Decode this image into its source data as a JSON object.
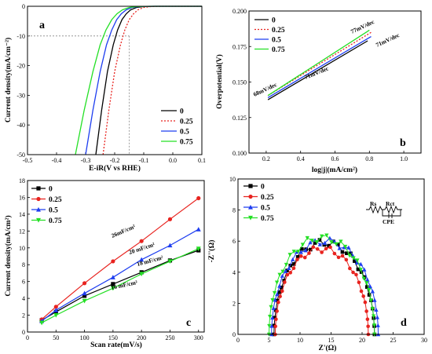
{
  "colors": {
    "s0": "#000000",
    "s025": "#e8231f",
    "s05": "#1d3df0",
    "s075": "#24e025"
  },
  "chart_data": [
    {
      "panel": "a",
      "type": "line",
      "xlabel": "E-iR(V vs RHE)",
      "ylabel": "Current density(mA/cm⁻²)",
      "xlim": [
        -0.5,
        0.1
      ],
      "ylim": [
        -50,
        0
      ],
      "xticks": [
        "-0.5",
        "-0.4",
        "-0.3",
        "-0.2",
        "-0.1",
        "0.0",
        "0.1"
      ],
      "yticks": [
        "-50",
        "-40",
        "-30",
        "-20",
        "-10",
        "0"
      ],
      "reference": {
        "y": -10,
        "x": -0.15,
        "style": "dashed"
      },
      "legend": "bottom-right",
      "series": [
        {
          "name": "0",
          "style": "solid",
          "x": [
            -0.265,
            -0.245,
            -0.225,
            -0.205,
            -0.19,
            -0.175,
            -0.16,
            -0.145,
            -0.125,
            -0.1,
            -0.06,
            0.0,
            0.1
          ],
          "y": [
            -50,
            -35,
            -22,
            -13,
            -8,
            -4.5,
            -2.5,
            -1.2,
            -0.4,
            -0.1,
            0,
            0,
            0
          ]
        },
        {
          "name": "0.25",
          "style": "dotted",
          "x": [
            -0.24,
            -0.22,
            -0.2,
            -0.18,
            -0.165,
            -0.15,
            -0.135,
            -0.12,
            -0.1,
            -0.075,
            -0.04,
            0.0,
            0.1
          ],
          "y": [
            -50,
            -35,
            -22,
            -13,
            -8,
            -4.5,
            -2.5,
            -1.2,
            -0.4,
            -0.1,
            0,
            0,
            0
          ]
        },
        {
          "name": "0.5",
          "style": "solid",
          "x": [
            -0.3,
            -0.275,
            -0.25,
            -0.228,
            -0.21,
            -0.193,
            -0.177,
            -0.16,
            -0.14,
            -0.115,
            -0.07,
            0.0,
            0.1
          ],
          "y": [
            -50,
            -35,
            -22,
            -13,
            -8,
            -4.5,
            -2.5,
            -1.2,
            -0.4,
            -0.1,
            0,
            0,
            0
          ]
        },
        {
          "name": "0.75",
          "style": "solid",
          "x": [
            -0.335,
            -0.305,
            -0.275,
            -0.25,
            -0.23,
            -0.21,
            -0.192,
            -0.173,
            -0.15,
            -0.125,
            -0.08,
            0.0,
            0.1
          ],
          "y": [
            -50,
            -35,
            -22,
            -13,
            -8,
            -4.5,
            -2.5,
            -1.2,
            -0.4,
            -0.1,
            0,
            0,
            0
          ]
        }
      ]
    },
    {
      "panel": "b",
      "type": "line",
      "xlabel": "log|j|(mA/cm²)",
      "ylabel": "Overpotential(V)",
      "xlim": [
        0.1,
        1.1
      ],
      "ylim": [
        0.1,
        0.2
      ],
      "xticks": [
        "0.2",
        "0.4",
        "0.6",
        "0.8",
        "1.0"
      ],
      "yticks": [
        "0.100",
        "0.125",
        "0.150",
        "0.175",
        "0.200"
      ],
      "legend": "top-left",
      "annotations": [
        "77mV/dec",
        "71mV/dec",
        "71mV/dec",
        "68mV/dec"
      ],
      "series": [
        {
          "name": "0",
          "style": "solid",
          "x": [
            0.21,
            0.79
          ],
          "y": [
            0.1375,
            0.179
          ]
        },
        {
          "name": "0.25",
          "style": "dotted",
          "x": [
            0.21,
            0.81
          ],
          "y": [
            0.1405,
            0.185
          ]
        },
        {
          "name": "0.5",
          "style": "solid",
          "x": [
            0.21,
            0.81
          ],
          "y": [
            0.139,
            0.182
          ]
        },
        {
          "name": "0.75",
          "style": "solid",
          "x": [
            0.21,
            0.8
          ],
          "y": [
            0.1405,
            0.1865
          ]
        }
      ]
    },
    {
      "panel": "c",
      "type": "line",
      "xlabel": "Scan rate(mV/s)",
      "ylabel": "Current density(mA/cm²)",
      "xlim": [
        0,
        310
      ],
      "ylim": [
        0,
        18
      ],
      "xticks": [
        "0",
        "50",
        "100",
        "150",
        "200",
        "250",
        "300"
      ],
      "yticks": [
        "0",
        "2",
        "4",
        "6",
        "8",
        "10",
        "12",
        "14",
        "16",
        "18"
      ],
      "legend": "top-left",
      "annotations": [
        "26mF/cm²",
        "20 mF/cm²",
        "18 mF/cm²",
        "16 mF/cm²"
      ],
      "series": [
        {
          "name": "0",
          "marker": "square",
          "x": [
            25,
            50,
            100,
            150,
            200,
            250,
            300
          ],
          "y": [
            1.4,
            2.4,
            4.3,
            5.7,
            7.1,
            8.5,
            9.7
          ]
        },
        {
          "name": "0.25",
          "marker": "circle",
          "x": [
            25,
            50,
            100,
            150,
            200,
            250,
            300
          ],
          "y": [
            1.5,
            3.0,
            5.8,
            8.4,
            10.8,
            13.4,
            15.9
          ]
        },
        {
          "name": "0.5",
          "marker": "triangle-up",
          "x": [
            25,
            50,
            100,
            150,
            200,
            250,
            300
          ],
          "y": [
            1.3,
            2.6,
            4.6,
            6.5,
            8.6,
            10.3,
            12.2
          ]
        },
        {
          "name": "0.75",
          "marker": "triangle-down",
          "x": [
            25,
            50,
            100,
            150,
            200,
            250,
            300
          ],
          "y": [
            1.1,
            2.0,
            3.7,
            5.2,
            6.9,
            8.4,
            9.9
          ]
        }
      ]
    },
    {
      "panel": "d",
      "type": "scatter",
      "xlabel": "Z'(Ω)",
      "ylabel": "-Z''(Ω)",
      "xlim": [
        0,
        30
      ],
      "ylim": [
        0,
        10
      ],
      "xticks": [
        "0",
        "5",
        "10",
        "15",
        "20",
        "25",
        "30"
      ],
      "yticks": [
        "0",
        "2",
        "4",
        "6",
        "8",
        "10"
      ],
      "legend": "top-left",
      "circuit_labels": {
        "rs": "Rs",
        "rct": "Rct",
        "cpe": "CPE"
      },
      "series": [
        {
          "name": "0",
          "marker": "square",
          "arc": {
            "r0": 5.8,
            "r1": 22.0,
            "height": 5.9
          }
        },
        {
          "name": "0.25",
          "marker": "circle",
          "arc": {
            "r0": 6.0,
            "r1": 21.0,
            "height": 5.5
          }
        },
        {
          "name": "0.5",
          "marker": "triangle-up",
          "arc": {
            "r0": 5.4,
            "r1": 22.6,
            "height": 6.0
          }
        },
        {
          "name": "0.75",
          "marker": "triangle-down",
          "arc": {
            "r0": 5.0,
            "r1": 22.0,
            "height": 6.2
          }
        }
      ]
    }
  ]
}
